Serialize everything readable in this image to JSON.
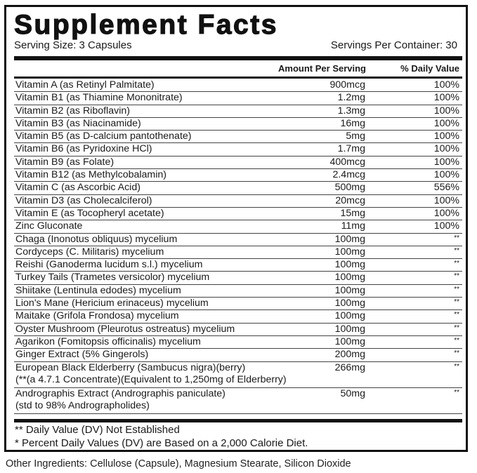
{
  "title": "Supplement Facts",
  "serving_size": "Serving Size: 3 Capsules",
  "servings_per_container": "Servings Per Container: 30",
  "headers": {
    "amount": "Amount Per Serving",
    "dv": "% Daily Value"
  },
  "rows": [
    {
      "name": "Vitamin A (as Retinyl Palmitate)",
      "amount": "900mcg",
      "dv": "100%"
    },
    {
      "name": "Vitamin B1 (as Thiamine Mononitrate)",
      "amount": "1.2mg",
      "dv": "100%"
    },
    {
      "name": "Vitamin B2 (as Riboflavin)",
      "amount": "1.3mg",
      "dv": "100%"
    },
    {
      "name": "Vitamin B3 (as Niacinamide)",
      "amount": "16mg",
      "dv": "100%"
    },
    {
      "name": "Vitamin B5 (as D-calcium pantothenate)",
      "amount": "5mg",
      "dv": "100%"
    },
    {
      "name": "Vitamin B6 (as Pyridoxine HCl)",
      "amount": "1.7mg",
      "dv": "100%"
    },
    {
      "name": "Vitamin B9 (as Folate)",
      "amount": "400mcg",
      "dv": "100%"
    },
    {
      "name": "Vitamin B12 (as Methylcobalamin)",
      "amount": "2.4mcg",
      "dv": "100%"
    },
    {
      "name": "Vitamin C (as Ascorbic Acid)",
      "amount": "500mg",
      "dv": "556%"
    },
    {
      "name": "Vitamin D3 (as Cholecalciferol)",
      "amount": "20mcg",
      "dv": "100%"
    },
    {
      "name": "Vitamin E (as Tocopheryl acetate)",
      "amount": "15mg",
      "dv": "100%"
    },
    {
      "name": "Zinc Gluconate",
      "amount": "11mg",
      "dv": "100%"
    },
    {
      "name": "Chaga (Inonotus obliquus) mycelium",
      "amount": "100mg",
      "dv": "**"
    },
    {
      "name": "Cordyceps (C. Militaris) mycelium",
      "amount": "100mg",
      "dv": "**"
    },
    {
      "name": "Reishi (Ganoderma lucidum s.l.) mycelium",
      "amount": "100mg",
      "dv": "**"
    },
    {
      "name": "Turkey Tails (Trametes versicolor) mycelium",
      "amount": "100mg",
      "dv": "**"
    },
    {
      "name": "Shiitake (Lentinula edodes) mycelium",
      "amount": "100mg",
      "dv": "**"
    },
    {
      "name": "Lion's Mane (Hericium erinaceus) mycelium",
      "amount": "100mg",
      "dv": "**"
    },
    {
      "name": "Maitake (Grifola Frondosa) mycelium",
      "amount": "100mg",
      "dv": "**"
    },
    {
      "name": "Oyster Mushroom (Pleurotus ostreatus) mycelium",
      "amount": "100mg",
      "dv": "**"
    },
    {
      "name": "Agarikon (Fomitopsis officinalis) mycelium",
      "amount": "100mg",
      "dv": "**"
    },
    {
      "name": "Ginger Extract (5% Gingerols)",
      "amount": "200mg",
      "dv": "**"
    },
    {
      "name": "European Black Elderberry (Sambucus nigra)(berry)\n(**(a 4.7.1 Concentrate)(Equivalent to 1,250mg of Elderberry)",
      "amount": "266mg",
      "dv": "**"
    },
    {
      "name": "Andrographis Extract (Andrographis paniculate)\n(std to 98% Andrographolides)",
      "amount": "50mg",
      "dv": "**"
    }
  ],
  "footnotes": [
    "** Daily Value (DV) Not Established",
    "* Percent Daily Values (DV) are Based on a 2,000 Calorie Diet."
  ],
  "other_ingredients": "Other Ingredients: Cellulose (Capsule), Magnesium Stearate, Silicon Dioxide"
}
